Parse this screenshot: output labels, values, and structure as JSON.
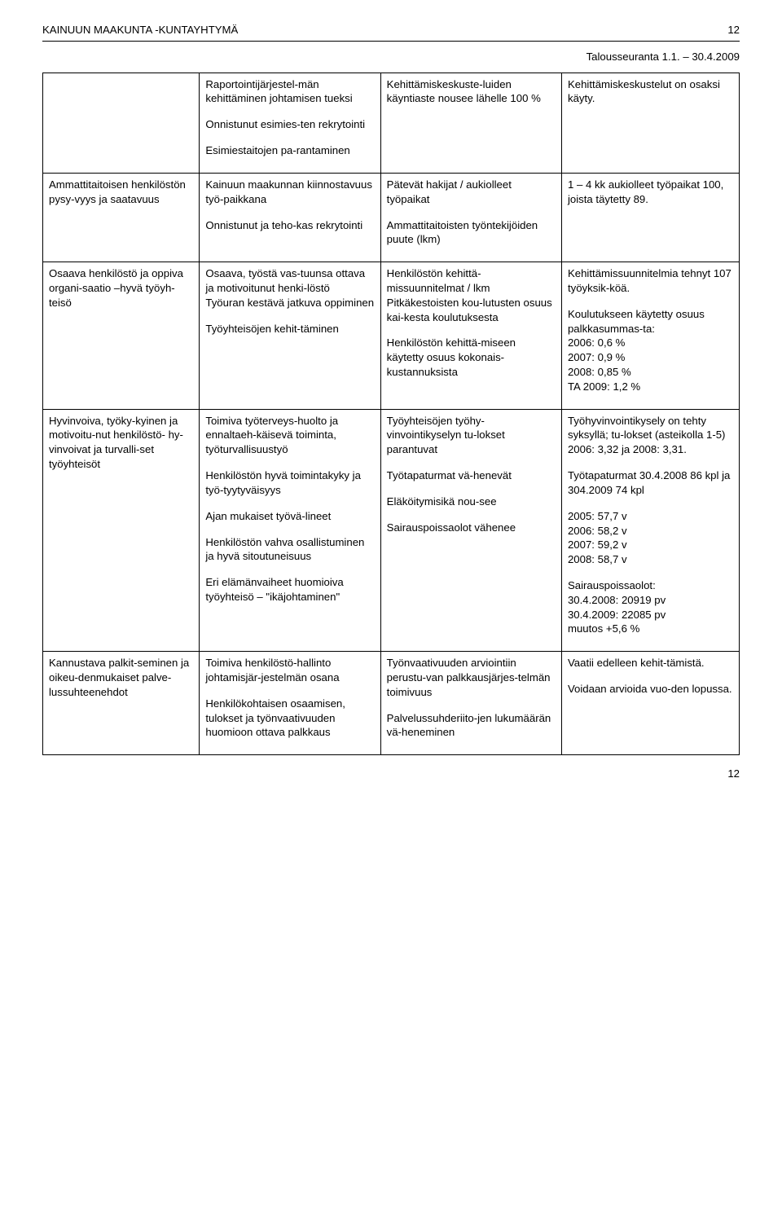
{
  "header": {
    "org": "KAINUUN MAAKUNTA -KUNTAYHTYMÄ",
    "page_top": "12",
    "subhead": "Talousseuranta 1.1. – 30.4.2009"
  },
  "footer": {
    "page": "12"
  },
  "rows": [
    {
      "c1": [
        ""
      ],
      "c2": [
        "Raportointijärjestel-män kehittäminen johtamisen tueksi",
        "Onnistunut esimies-ten rekrytointi",
        "Esimiestaitojen pa-rantaminen"
      ],
      "c3": [
        "Kehittämiskeskuste-luiden käyntiaste nousee lähelle 100 %"
      ],
      "c4": [
        "Kehittämiskeskustelut on osaksi käyty."
      ]
    },
    {
      "c1": [
        "Ammattitaitoisen henkilöstön pysy-vyys ja saatavuus"
      ],
      "c2": [
        "Kainuun maakunnan kiinnostavuus työ-paikkana",
        "Onnistunut ja teho-kas rekrytointi"
      ],
      "c3": [
        "Pätevät hakijat / aukiolleet työpaikat",
        "Ammattitaitoisten työntekijöiden puute (lkm)"
      ],
      "c4": [
        "1 – 4 kk aukiolleet työpaikat 100, joista täytetty 89."
      ]
    },
    {
      "c1": [
        "Osaava henkilöstö ja oppiva organi-saatio –hyvä työyh-teisö"
      ],
      "c2": [
        "Osaava, työstä vas-tuunsa ottava ja motivoitunut henki-löstö\nTyöuran kestävä jatkuva oppiminen",
        "Työyhteisöjen kehit-täminen"
      ],
      "c3": [
        "Henkilöstön kehittä-missuunnitelmat / lkm\nPitkäkestoisten kou-lutusten osuus kai-kesta koulutuksesta",
        "Henkilöstön kehittä-miseen käytetty osuus kokonais-kustannuksista"
      ],
      "c4": [
        "Kehittämissuunnitelmia tehnyt 107 työyksik-köä.",
        "Koulutukseen käytetty osuus palkkasummas-ta:\n2006: 0,6 %\n2007: 0,9 %\n2008: 0,85 %\nTA 2009: 1,2 %"
      ]
    },
    {
      "c1": [
        "Hyvinvoiva, työky-kyinen ja motivoitu-nut henkilöstö- hy-vinvoivat ja turvalli-set työyhteisöt"
      ],
      "c2": [
        "Toimiva työterveys-huolto ja ennaltaeh-käisevä toiminta, työturvallisuustyö",
        "Henkilöstön hyvä toimintakyky ja työ-tyytyväisyys",
        "Ajan mukaiset työvä-lineet",
        "Henkilöstön vahva osallistuminen ja hyvä sitoutuneisuus",
        "Eri elämänvaiheet huomioiva työyhteisö – \"ikäjohtaminen\""
      ],
      "c3": [
        "Työyhteisöjen työhy-vinvointikyselyn tu-lokset parantuvat",
        "Työtapaturmat vä-henevät",
        "Eläköitymisikä nou-see",
        "Sairauspoissaolot vähenee"
      ],
      "c4": [
        "Työhyvinvointikysely on tehty syksyllä; tu-lokset (asteikolla 1-5) 2006: 3,32 ja 2008: 3,31.",
        "Työtapaturmat 30.4.2008 86 kpl ja 304.2009 74 kpl",
        "2005: 57,7 v\n2006: 58,2 v\n2007: 59,2 v\n2008: 58,7 v",
        "Sairauspoissaolot:\n30.4.2008: 20919 pv\n30.4.2009: 22085 pv\nmuutos +5,6 %"
      ]
    },
    {
      "c1": [
        "Kannustava palkit-seminen ja oikeu-denmukaiset palve-lussuhteenehdot"
      ],
      "c2": [
        "Toimiva henkilöstö-hallinto johtamisjär-jestelmän osana",
        "Henkilökohtaisen osaamisen, tulokset ja työnvaativuuden huomioon ottava palkkaus"
      ],
      "c3": [
        "Työnvaativuuden arviointiin perustu-van palkkausjärjes-telmän toimivuus",
        "Palvelussuhderiito-jen lukumäärän vä-heneminen"
      ],
      "c4": [
        "Vaatii edelleen kehit-tämistä.",
        "Voidaan arvioida vuo-den lopussa."
      ]
    }
  ]
}
